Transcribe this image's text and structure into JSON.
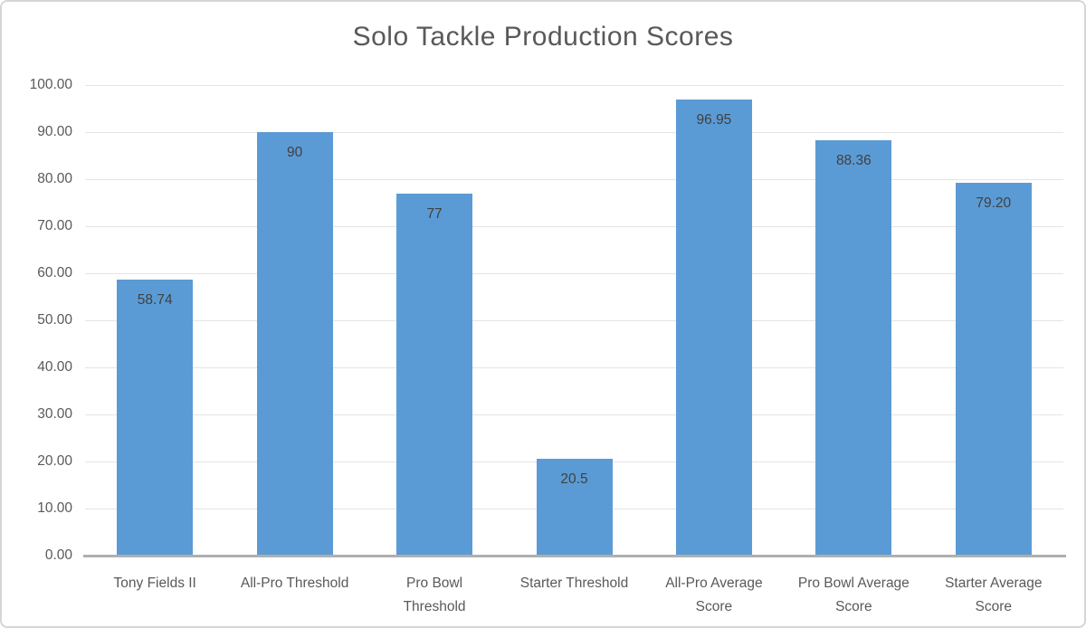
{
  "chart_data": {
    "type": "bar",
    "title": "Solo Tackle Production Scores",
    "categories": [
      "Tony Fields II",
      "All-Pro Threshold",
      "Pro Bowl Threshold",
      "Starter Threshold",
      "All-Pro Average Score",
      "Pro Bowl Average Score",
      "Starter Average Score"
    ],
    "category_label_lines": [
      [
        "Tony Fields II"
      ],
      [
        "All-Pro Threshold"
      ],
      [
        "Pro Bowl",
        "Threshold"
      ],
      [
        "Starter Threshold"
      ],
      [
        "All-Pro Average",
        "Score"
      ],
      [
        "Pro Bowl Average",
        "Score"
      ],
      [
        "Starter Average",
        "Score"
      ]
    ],
    "values": [
      58.74,
      90,
      77,
      20.5,
      96.95,
      88.36,
      79.2
    ],
    "data_labels": [
      "58.74",
      "90",
      "77",
      "20.5",
      "96.95",
      "88.36",
      "79.20"
    ],
    "xlabel": "",
    "ylabel": "",
    "ylim": [
      0,
      100
    ],
    "ytick_step": 10,
    "ytick_labels": [
      "0.00",
      "10.00",
      "20.00",
      "30.00",
      "40.00",
      "50.00",
      "60.00",
      "70.00",
      "80.00",
      "90.00",
      "100.00"
    ],
    "grid": true,
    "legend_position": "none",
    "data_label_position": "inside-end",
    "colors": {
      "bar": "#5B9BD5",
      "data_label": "#404040",
      "axis_text": "#595959",
      "title": "#595959",
      "gridline": "#E4E4E4",
      "axis_line": "#AFAFAF",
      "figure_border": "#D6D6D6"
    }
  }
}
